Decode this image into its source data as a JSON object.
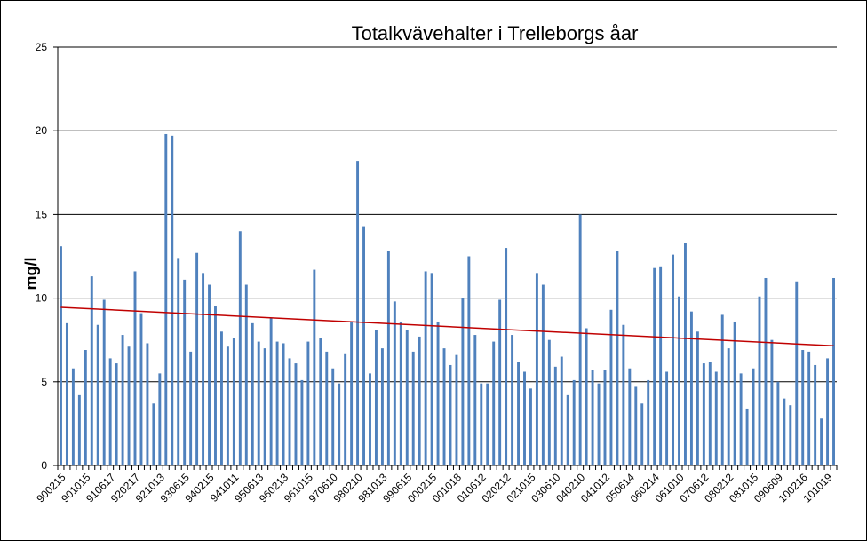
{
  "chart_data": {
    "type": "bar",
    "title": "Totalkvävehalter i Trelleborgs åar",
    "xlabel": "",
    "ylabel": "mg/l",
    "ylim": [
      0,
      25
    ],
    "yticks": [
      0,
      5,
      10,
      15,
      20,
      25
    ],
    "grid": "horizontal major gridlines",
    "legend": "none",
    "bar_color": "#4F81BD",
    "trend_color": "#C00000",
    "tick_labels": [
      "900215",
      "901015",
      "910617",
      "920217",
      "921013",
      "930615",
      "940215",
      "941011",
      "950613",
      "960213",
      "961015",
      "970610",
      "980210",
      "981013",
      "990615",
      "000215",
      "001018",
      "010612",
      "020212",
      "021015",
      "030610",
      "040210",
      "041012",
      "050614",
      "060214",
      "061010",
      "070612",
      "080212",
      "081015",
      "090609",
      "100216",
      "101019"
    ],
    "values": [
      13.1,
      8.5,
      5.8,
      4.2,
      6.9,
      11.3,
      8.4,
      9.9,
      6.4,
      6.1,
      7.8,
      7.1,
      11.6,
      9.1,
      7.3,
      3.7,
      5.5,
      19.8,
      19.7,
      12.4,
      11.1,
      6.8,
      12.7,
      11.5,
      10.8,
      9.5,
      8.0,
      7.1,
      7.6,
      14.0,
      10.8,
      8.5,
      7.4,
      7.0,
      8.8,
      7.4,
      7.3,
      6.4,
      6.1,
      5.1,
      7.4,
      11.7,
      7.6,
      6.8,
      5.8,
      4.9,
      6.7,
      8.6,
      18.2,
      14.3,
      5.5,
      8.1,
      7.0,
      12.8,
      9.8,
      8.6,
      8.1,
      6.8,
      7.7,
      11.6,
      11.5,
      8.6,
      7.0,
      6.0,
      6.6,
      10.0,
      12.5,
      7.8,
      4.9,
      4.9,
      7.4,
      9.9,
      13.0,
      7.8,
      6.2,
      5.6,
      4.6,
      11.5,
      10.8,
      7.5,
      5.9,
      6.5,
      4.2,
      5.1,
      15.0,
      8.2,
      5.7,
      4.9,
      5.7,
      9.3,
      12.8,
      8.4,
      5.8,
      4.7,
      3.7,
      5.1,
      11.8,
      11.9,
      5.6,
      12.6,
      10.1,
      13.3,
      9.2,
      8.0,
      6.1,
      6.2,
      5.6,
      9.0,
      7.0,
      8.6,
      5.5,
      3.4,
      5.8,
      10.1,
      11.2,
      7.5,
      5.0,
      4.0,
      3.6,
      11.0,
      6.9,
      6.8,
      6.0,
      2.8,
      6.4,
      11.2
    ],
    "trend": {
      "start": 9.45,
      "end": 7.15
    }
  }
}
